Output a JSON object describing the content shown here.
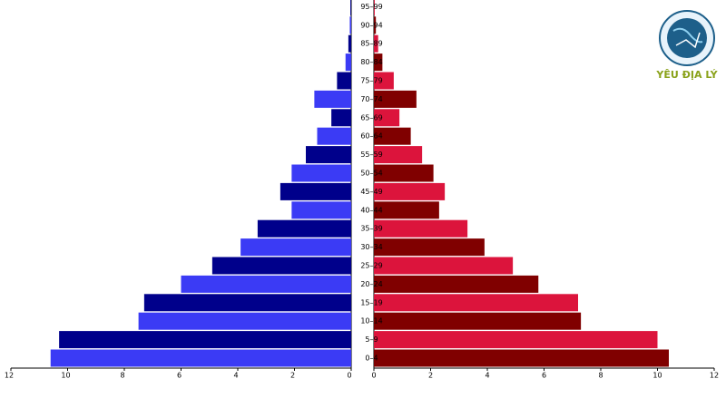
{
  "chart_data": {
    "type": "pyramid",
    "categories": [
      "0–4",
      "5–9",
      "10–14",
      "15–19",
      "20–24",
      "25–29",
      "30–34",
      "35–39",
      "40–44",
      "45–49",
      "50–54",
      "55–59",
      "60–64",
      "65–69",
      "70–74",
      "75–79",
      "80–84",
      "85–89",
      "90–94",
      "95–99"
    ],
    "series": [
      {
        "side": "left",
        "colors": [
          "#3b3bf5",
          "#00008b"
        ],
        "values": [
          10.6,
          10.3,
          7.5,
          7.3,
          6.0,
          4.9,
          3.9,
          3.3,
          2.1,
          2.5,
          2.1,
          1.6,
          1.2,
          0.7,
          1.3,
          0.5,
          0.2,
          0.1,
          0.05,
          0.03
        ]
      },
      {
        "side": "right",
        "colors": [
          "#800000",
          "#dc143c"
        ],
        "values": [
          10.4,
          10.0,
          7.3,
          7.2,
          5.8,
          4.9,
          3.9,
          3.3,
          2.3,
          2.5,
          2.1,
          1.7,
          1.3,
          0.9,
          1.5,
          0.7,
          0.3,
          0.15,
          0.07,
          0.03
        ]
      }
    ],
    "xlim": [
      0,
      12
    ],
    "xticks": [
      0,
      2,
      4,
      6,
      8,
      10,
      12
    ]
  },
  "logo": {
    "text": "YÊU ĐỊA LÝ"
  }
}
